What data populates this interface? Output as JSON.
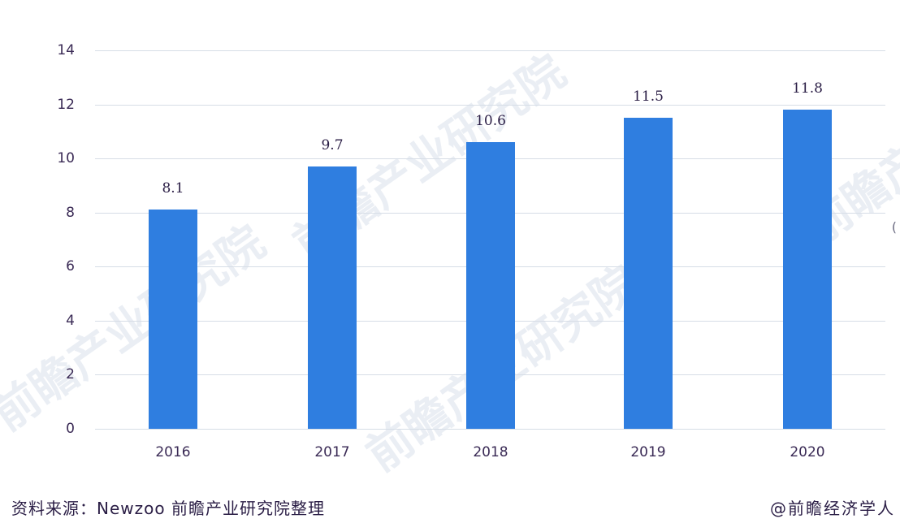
{
  "chart_data": {
    "type": "bar",
    "title": "",
    "xlabel": "",
    "ylabel": "",
    "categories": [
      "2016",
      "2017",
      "2018",
      "2019",
      "2020"
    ],
    "values": [
      8.1,
      9.7,
      10.6,
      11.5,
      11.8
    ],
    "value_labels": [
      "8.1",
      "9.7",
      "10.6",
      "11.5",
      "11.8"
    ],
    "ylim": [
      0,
      14
    ],
    "yticks": [
      "0",
      "2",
      "4",
      "6",
      "8",
      "10",
      "12",
      "14"
    ],
    "grid": true,
    "legend": null,
    "bar_color": "#2f7ee0"
  },
  "footer": {
    "source": "资料来源：Newzoo 前瞻产业研究院整理",
    "credit": "@前瞻经济学人"
  },
  "watermark": {
    "text": "前瞻产业研究院"
  },
  "edge_glyph": "("
}
